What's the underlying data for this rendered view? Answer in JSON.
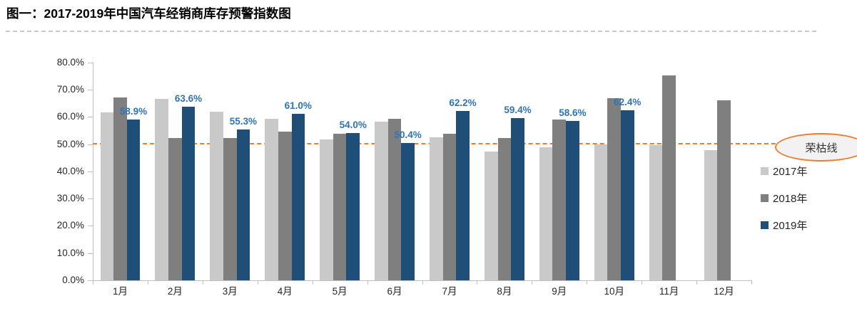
{
  "page": {
    "title": "图一：2017-2019年中国汽车经销商库存预警指数图"
  },
  "chart_data": {
    "type": "bar",
    "title": "2017-2019年中国汽车经销商库存预警指数图",
    "categories": [
      "1月",
      "2月",
      "3月",
      "4月",
      "5月",
      "6月",
      "7月",
      "8月",
      "9月",
      "10月",
      "11月",
      "12月"
    ],
    "series": [
      {
        "name": "2017年",
        "color": "#c9c9c9",
        "values": [
          61.5,
          66.6,
          61.9,
          59.2,
          51.8,
          58.2,
          52.6,
          47.2,
          48.7,
          49.9,
          49.5,
          47.7
        ]
      },
      {
        "name": "2018年",
        "color": "#7f7f7f",
        "values": [
          67.2,
          52.3,
          52.1,
          54.6,
          53.7,
          59.2,
          53.9,
          52.2,
          58.9,
          66.9,
          75.1,
          66.1
        ]
      },
      {
        "name": "2019年",
        "color": "#1f4e79",
        "values": [
          58.9,
          63.6,
          55.3,
          61.0,
          54.0,
          50.4,
          62.2,
          59.4,
          58.6,
          62.4,
          null,
          null
        ],
        "data_labels": [
          "58.9%",
          "63.6%",
          "55.3%",
          "61.0%",
          "54.0%",
          "50.4%",
          "62.2%",
          "59.4%",
          "58.6%",
          "62.4%"
        ]
      }
    ],
    "ylim": [
      0,
      80
    ],
    "ytick_step": 10,
    "ytick_labels": [
      "0.0%",
      "10.0%",
      "20.0%",
      "30.0%",
      "40.0%",
      "50.0%",
      "60.0%",
      "70.0%",
      "80.0%"
    ],
    "grid": false,
    "legend_position": "right",
    "data_label_color": "#2e74b5",
    "reference_line": {
      "value": 50,
      "label": "荣枯线",
      "color": "#ed7d31"
    }
  }
}
